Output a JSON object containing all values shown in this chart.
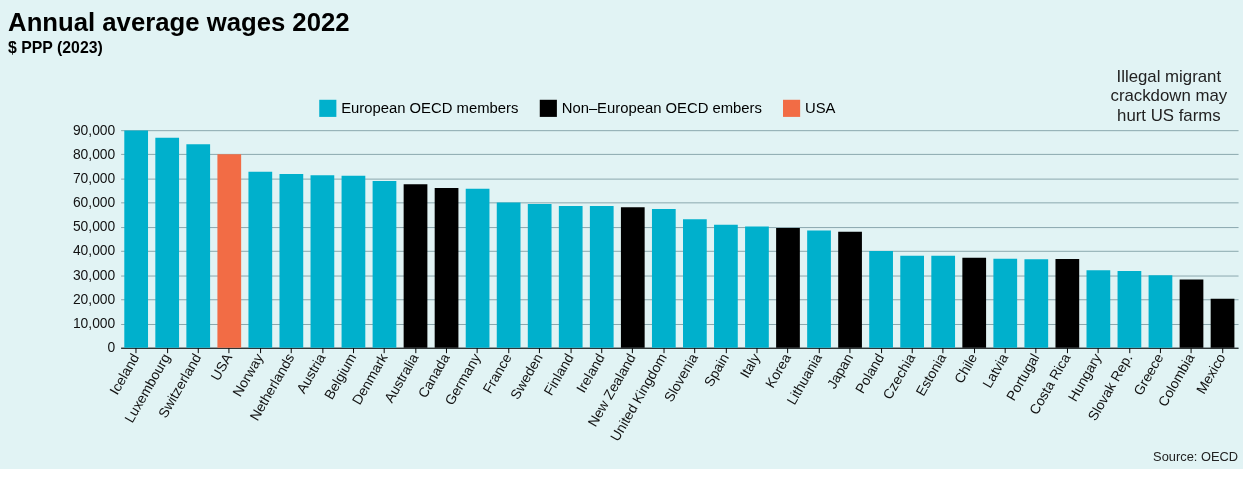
{
  "chart_data": {
    "type": "bar",
    "title": "Annual average wages 2022",
    "subtitle": "$ PPP (2023)",
    "categories": [
      "Iceland",
      "Luxembourg",
      "Switzerland",
      "USA",
      "Norway",
      "Netherlands",
      "Austria",
      "Belgium",
      "Denmark",
      "Australia",
      "Canada",
      "Germany",
      "France",
      "Sweden",
      "Finland",
      "Ireland",
      "New Zealand",
      "United Kingdom",
      "Slovenia",
      "Spain",
      "Italy",
      "Korea",
      "Lithuania",
      "Japan",
      "Poland",
      "Czechia",
      "Estonia",
      "Chile",
      "Latvia",
      "Portugal",
      "Costa Rica",
      "Hungary",
      "Slovak Rep.",
      "Greece",
      "Colombia",
      "Mexico"
    ],
    "series": [
      {
        "name": "European OECD members",
        "color": "#00b0cc",
        "values": [
          89900,
          86900,
          84200,
          null,
          72800,
          71900,
          71400,
          71100,
          69000,
          null,
          null,
          65800,
          60100,
          59500,
          58600,
          58600,
          null,
          57400,
          53200,
          50900,
          50200,
          null,
          48500,
          null,
          40000,
          38000,
          38000,
          null,
          36800,
          36600,
          null,
          32000,
          31700,
          30000,
          null,
          null
        ]
      },
      {
        "name": "Non–European OECD embers",
        "color": "#000000",
        "values": [
          null,
          null,
          null,
          null,
          null,
          null,
          null,
          null,
          null,
          67600,
          66100,
          null,
          null,
          null,
          null,
          null,
          58100,
          null,
          null,
          null,
          null,
          49500,
          null,
          48000,
          null,
          null,
          null,
          37200,
          null,
          null,
          36700,
          null,
          null,
          null,
          28200,
          20300
        ]
      },
      {
        "name": "USA",
        "color": "#f26c45",
        "values": [
          null,
          null,
          null,
          80000,
          null,
          null,
          null,
          null,
          null,
          null,
          null,
          null,
          null,
          null,
          null,
          null,
          null,
          null,
          null,
          null,
          null,
          null,
          null,
          null,
          null,
          null,
          null,
          null,
          null,
          null,
          null,
          null,
          null,
          null,
          null,
          null
        ]
      }
    ],
    "ylim": [
      0,
      90000
    ],
    "yticks": [
      {
        "value": 0,
        "label": "0"
      },
      {
        "value": 10000,
        "label": "10,000"
      },
      {
        "value": 20000,
        "label": "20,000"
      },
      {
        "value": 30000,
        "label": "30,000"
      },
      {
        "value": 40000,
        "label": "40,000"
      },
      {
        "value": 50000,
        "label": "50,000"
      },
      {
        "value": 60000,
        "label": "60,000"
      },
      {
        "value": 70000,
        "label": "70,000"
      },
      {
        "value": 80000,
        "label": "80,000"
      },
      {
        "value": 90000,
        "label": "90,000"
      }
    ],
    "grid": "y",
    "legend": "top",
    "annotations": [
      "Illegal migrant crackdown may hurt US farms",
      "Source: OECD"
    ]
  }
}
